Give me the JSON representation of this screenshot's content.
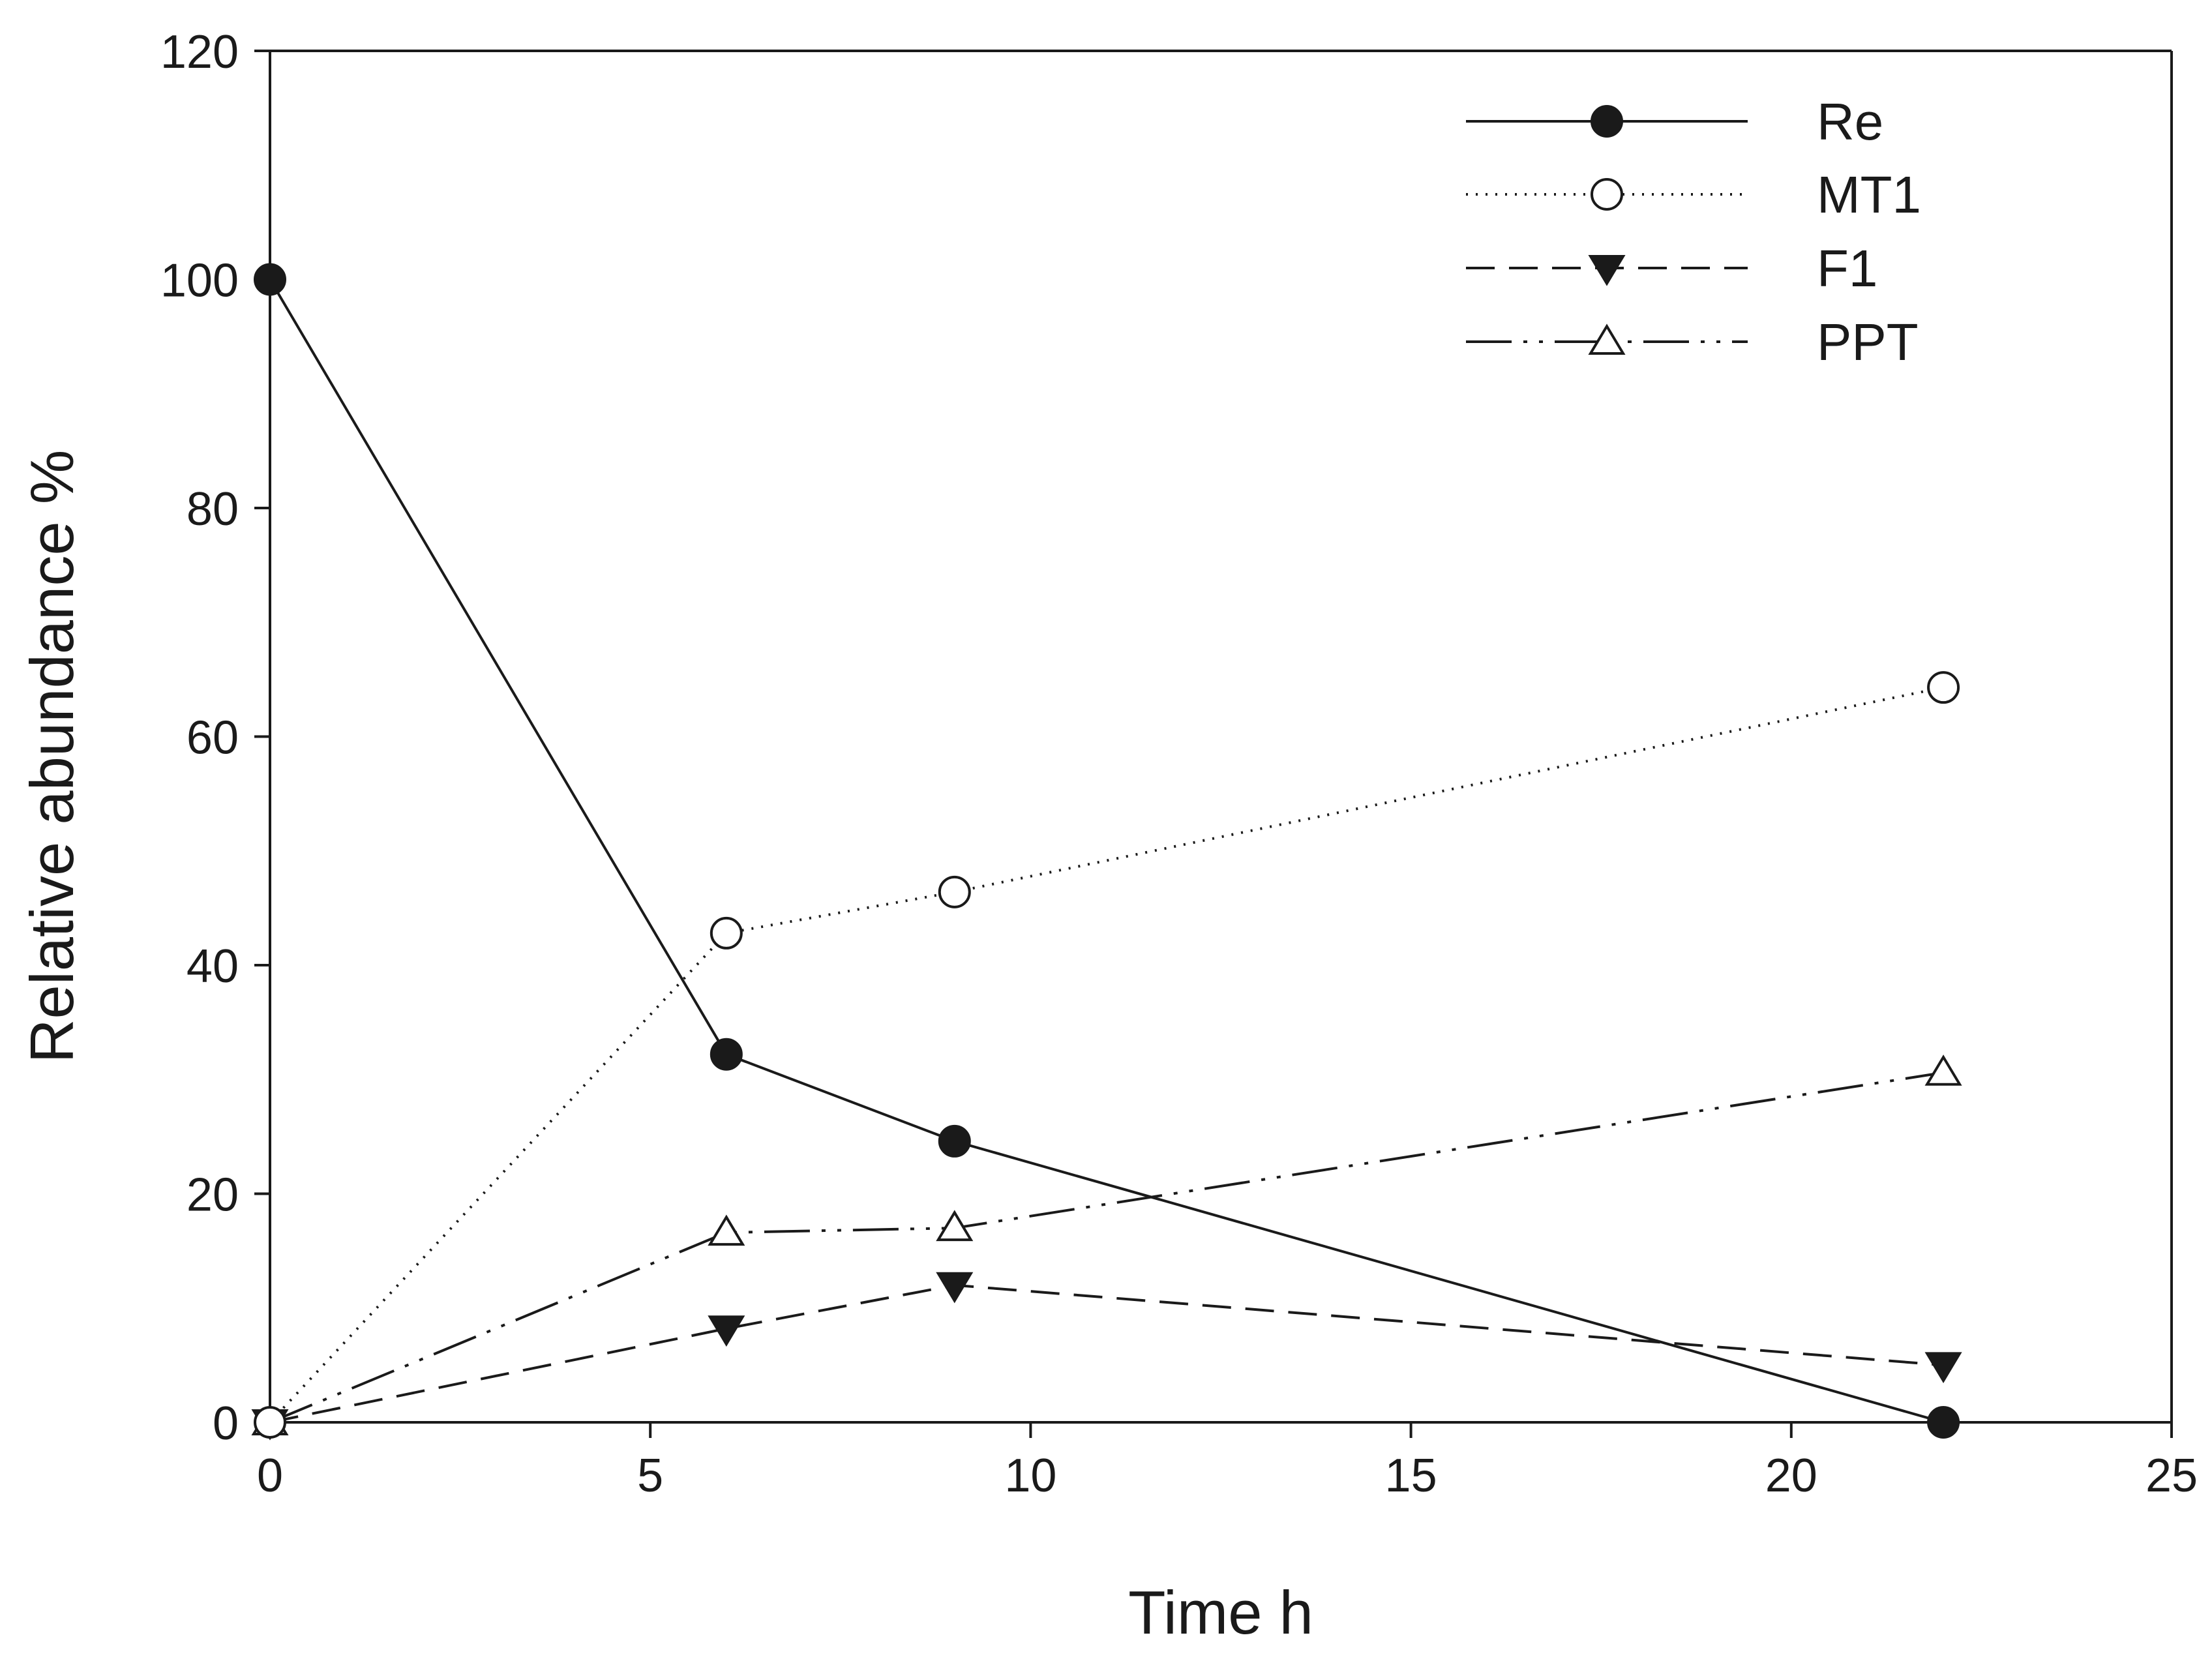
{
  "chart_data": {
    "type": "line",
    "title": "",
    "xlabel": "Time h",
    "ylabel": "Relative abundance %",
    "xlim": [
      0,
      25
    ],
    "ylim": [
      0,
      120
    ],
    "xticks": [
      0,
      5,
      10,
      15,
      20,
      25
    ],
    "yticks": [
      0,
      20,
      40,
      60,
      80,
      100,
      120
    ],
    "grid": false,
    "legend_position": "top-right",
    "x": [
      0,
      6,
      9,
      22
    ],
    "series": [
      {
        "name": "Re",
        "values": [
          100,
          32.2,
          24.6,
          0
        ],
        "marker": "circle-filled",
        "line": "solid",
        "color": "#1a1a1a"
      },
      {
        "name": "MT1",
        "values": [
          0,
          42.8,
          46.4,
          64.3
        ],
        "marker": "circle-open",
        "line": "dotted",
        "color": "#1a1a1a"
      },
      {
        "name": "F1",
        "values": [
          0,
          8.2,
          12.0,
          5.0
        ],
        "marker": "triangle-down-filled",
        "line": "dashed",
        "color": "#1a1a1a"
      },
      {
        "name": "PPT",
        "values": [
          0,
          16.6,
          17.0,
          30.6
        ],
        "marker": "triangle-up-open",
        "line": "dash-dot-dot",
        "color": "#1a1a1a"
      }
    ]
  }
}
